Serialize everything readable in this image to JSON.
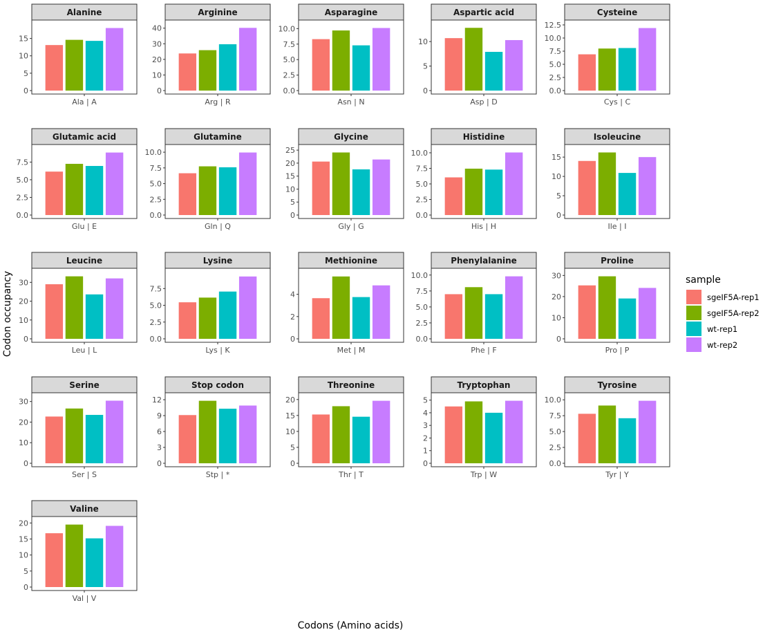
{
  "chart_data": {
    "type": "bar",
    "xlabel": "Codons (Amino acids)",
    "ylabel": "Codon occupancy",
    "grid": false,
    "legend": {
      "title": "sample",
      "placement": "right",
      "entries": [
        {
          "name": "sgeIF5A-rep1",
          "color": "#F8766D"
        },
        {
          "name": "sgeIF5A-rep2",
          "color": "#7CAE00"
        },
        {
          "name": "wt-rep1",
          "color": "#00BFC4"
        },
        {
          "name": "wt-rep2",
          "color": "#C77CFF"
        }
      ]
    },
    "panels": [
      {
        "title": "Alanine",
        "category": "Ala | A",
        "values": [
          13.1,
          14.6,
          14.3,
          18.0
        ],
        "ylim": [
          0,
          18.9
        ],
        "ticks": [
          "0",
          "5",
          "10",
          "15"
        ]
      },
      {
        "title": "Arginine",
        "category": "Arg | R",
        "values": [
          23.8,
          25.9,
          29.7,
          40.2
        ],
        "ylim": [
          0,
          42.1
        ],
        "ticks": [
          "0",
          "10",
          "20",
          "30",
          "40"
        ]
      },
      {
        "title": "Asparagine",
        "category": "Asn | N",
        "values": [
          8.3,
          9.7,
          7.3,
          10.1
        ],
        "ylim": [
          0,
          10.6
        ],
        "ticks": [
          "0.0",
          "2.5",
          "5.0",
          "7.5",
          "10.0"
        ]
      },
      {
        "title": "Aspartic acid",
        "category": "Asp | D",
        "values": [
          10.7,
          12.8,
          7.9,
          10.3
        ],
        "ylim": [
          0,
          13.4
        ],
        "ticks": [
          "0",
          "5",
          "10"
        ]
      },
      {
        "title": "Cysteine",
        "category": "Cys | C",
        "values": [
          6.9,
          8.0,
          8.1,
          11.9
        ],
        "ylim": [
          0,
          12.5
        ],
        "ticks": [
          "0.0",
          "2.5",
          "5.0",
          "7.5",
          "10.0",
          "12.5"
        ]
      },
      {
        "title": "Glutamic acid",
        "category": "Glu | E",
        "values": [
          6.15,
          7.25,
          6.95,
          8.85
        ],
        "ylim": [
          0,
          9.3
        ],
        "ticks": [
          "0.0",
          "2.5",
          "5.0",
          "7.5"
        ]
      },
      {
        "title": "Glutamine",
        "category": "Gln | Q",
        "values": [
          6.65,
          7.75,
          7.6,
          9.95
        ],
        "ylim": [
          0,
          10.45
        ],
        "ticks": [
          "0.0",
          "2.5",
          "5.0",
          "7.5",
          "10.0"
        ]
      },
      {
        "title": "Glycine",
        "category": "Gly | G",
        "values": [
          20.6,
          24.1,
          17.6,
          21.4
        ],
        "ylim": [
          0,
          25.3
        ],
        "ticks": [
          "0",
          "5",
          "10",
          "15",
          "20",
          "25"
        ]
      },
      {
        "title": "Histidine",
        "category": "His | H",
        "values": [
          6.05,
          7.45,
          7.3,
          10.05
        ],
        "ylim": [
          0,
          10.55
        ],
        "ticks": [
          "0.0",
          "2.5",
          "5.0",
          "7.5",
          "10.0"
        ]
      },
      {
        "title": "Isoleucine",
        "category": "Ile | I",
        "values": [
          14.0,
          16.2,
          10.9,
          15.0
        ],
        "ylim": [
          0,
          17.0
        ],
        "ticks": [
          "0",
          "5",
          "10",
          "15"
        ]
      },
      {
        "title": "Leucine",
        "category": "Leu | L",
        "values": [
          29.0,
          33.2,
          23.6,
          32.1
        ],
        "ylim": [
          0,
          34.9
        ],
        "ticks": [
          "0",
          "10",
          "20",
          "30"
        ]
      },
      {
        "title": "Lysine",
        "category": "Lys | K",
        "values": [
          5.45,
          6.15,
          7.05,
          9.3
        ],
        "ylim": [
          0,
          9.8
        ],
        "ticks": [
          "0.0",
          "2.5",
          "5.0",
          "7.5"
        ]
      },
      {
        "title": "Methionine",
        "category": "Met | M",
        "values": [
          3.65,
          5.6,
          3.75,
          4.8
        ],
        "ylim": [
          0,
          5.9
        ],
        "ticks": [
          "0",
          "2",
          "4"
        ]
      },
      {
        "title": "Phenylalanine",
        "category": "Phe | F",
        "values": [
          7.0,
          8.1,
          7.0,
          9.8
        ],
        "ylim": [
          0,
          10.3
        ],
        "ticks": [
          "0.0",
          "2.5",
          "5.0",
          "7.5",
          "10.0"
        ]
      },
      {
        "title": "Proline",
        "category": "Pro | P",
        "values": [
          25.3,
          29.6,
          19.1,
          24.1
        ],
        "ylim": [
          0,
          31.1
        ],
        "ticks": [
          "0",
          "10",
          "20",
          "30"
        ]
      },
      {
        "title": "Serine",
        "category": "Ser | S",
        "values": [
          22.7,
          26.6,
          23.5,
          30.4
        ],
        "ylim": [
          0,
          31.9
        ],
        "ticks": [
          "0",
          "10",
          "20",
          "30"
        ]
      },
      {
        "title": "Stop codon",
        "category": "Stp | *",
        "values": [
          9.1,
          11.8,
          10.3,
          10.9
        ],
        "ylim": [
          0,
          12.4
        ],
        "ticks": [
          "0",
          "3",
          "6",
          "9",
          "12"
        ]
      },
      {
        "title": "Threonine",
        "category": "Thr | T",
        "values": [
          15.3,
          17.9,
          14.6,
          19.6
        ],
        "ylim": [
          0,
          20.6
        ],
        "ticks": [
          "0",
          "5",
          "10",
          "15",
          "20"
        ]
      },
      {
        "title": "Tryptophan",
        "category": "Trp | W",
        "values": [
          4.5,
          4.9,
          4.0,
          4.95
        ],
        "ylim": [
          0,
          5.2
        ],
        "ticks": [
          "0",
          "1",
          "2",
          "3",
          "4",
          "5"
        ]
      },
      {
        "title": "Tyrosine",
        "category": "Tyr | Y",
        "values": [
          7.8,
          9.1,
          7.1,
          9.85
        ],
        "ylim": [
          0,
          10.35
        ],
        "ticks": [
          "0.0",
          "2.5",
          "5.0",
          "7.5",
          "10.0"
        ]
      },
      {
        "title": "Valine",
        "category": "Val | V",
        "values": [
          16.8,
          19.5,
          15.2,
          19.1
        ],
        "ylim": [
          0,
          20.5
        ],
        "ticks": [
          "0",
          "5",
          "10",
          "15",
          "20"
        ]
      }
    ]
  }
}
